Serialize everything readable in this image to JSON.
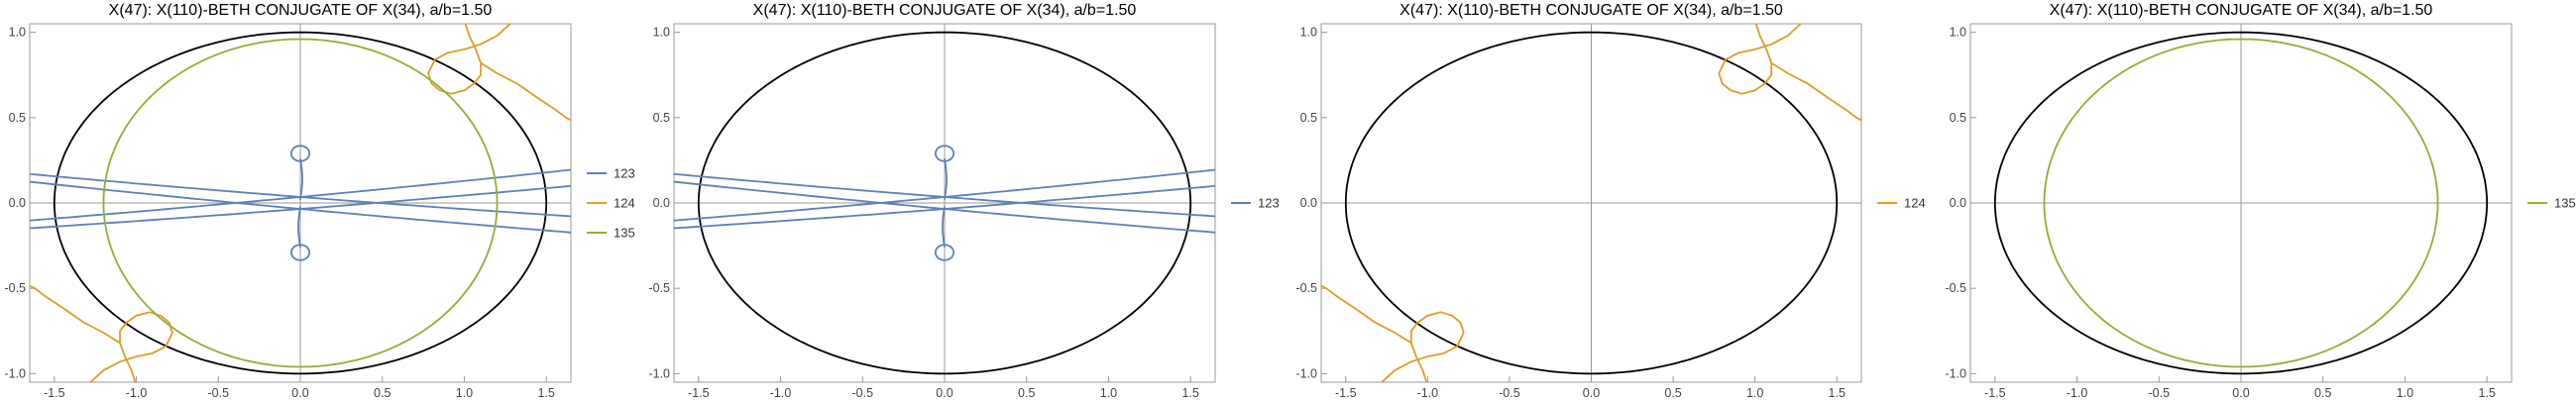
{
  "chart_data": [
    {
      "type": "line",
      "title": "X(47): X(110)-BETH CONJUGATE OF X(34), a/b=1.50",
      "xlim": [
        -1.65,
        1.65
      ],
      "ylim": [
        -1.05,
        1.05
      ],
      "xticks": [
        "-1.5",
        "-1.0",
        "-0.5",
        "0.0",
        "0.5",
        "1.0",
        "1.5"
      ],
      "yticks": [
        "-1.0",
        "-0.5",
        "0.0",
        "0.5",
        "1.0"
      ],
      "grid": false,
      "legend_position": "right",
      "reference_ellipse": {
        "a": 1.5,
        "b": 1.0,
        "color": "#000000"
      },
      "series": [
        {
          "name": "123",
          "color": "#5E81B5"
        },
        {
          "name": "124",
          "color": "#E19C24"
        },
        {
          "name": "135",
          "color": "#8FB032"
        }
      ]
    },
    {
      "type": "line",
      "title": "X(47): X(110)-BETH CONJUGATE OF X(34), a/b=1.50",
      "xlim": [
        -1.65,
        1.65
      ],
      "ylim": [
        -1.05,
        1.05
      ],
      "xticks": [
        "-1.5",
        "-1.0",
        "-0.5",
        "0.0",
        "0.5",
        "1.0",
        "1.5"
      ],
      "yticks": [
        "-1.0",
        "-0.5",
        "0.0",
        "0.5",
        "1.0"
      ],
      "grid": false,
      "legend_position": "right",
      "reference_ellipse": {
        "a": 1.5,
        "b": 1.0,
        "color": "#000000"
      },
      "series": [
        {
          "name": "123",
          "color": "#5E81B5"
        }
      ]
    },
    {
      "type": "line",
      "title": "X(47): X(110)-BETH CONJUGATE OF X(34), a/b=1.50",
      "xlim": [
        -1.65,
        1.65
      ],
      "ylim": [
        -1.05,
        1.05
      ],
      "xticks": [
        "-1.5",
        "-1.0",
        "-0.5",
        "0.0",
        "0.5",
        "1.0",
        "1.5"
      ],
      "yticks": [
        "-1.0",
        "-0.5",
        "0.0",
        "0.5",
        "1.0"
      ],
      "grid": false,
      "legend_position": "right",
      "reference_ellipse": {
        "a": 1.5,
        "b": 1.0,
        "color": "#000000"
      },
      "series": [
        {
          "name": "124",
          "color": "#E19C24"
        }
      ]
    },
    {
      "type": "line",
      "title": "X(47): X(110)-BETH CONJUGATE OF X(34), a/b=1.50",
      "xlim": [
        -1.65,
        1.65
      ],
      "ylim": [
        -1.05,
        1.05
      ],
      "xticks": [
        "-1.5",
        "-1.0",
        "-0.5",
        "0.0",
        "0.5",
        "1.0",
        "1.5"
      ],
      "yticks": [
        "-1.0",
        "-0.5",
        "0.0",
        "0.5",
        "1.0"
      ],
      "grid": false,
      "legend_position": "right",
      "reference_ellipse": {
        "a": 1.5,
        "b": 1.0,
        "color": "#000000"
      },
      "series": [
        {
          "name": "135",
          "color": "#8FB032"
        }
      ]
    }
  ]
}
